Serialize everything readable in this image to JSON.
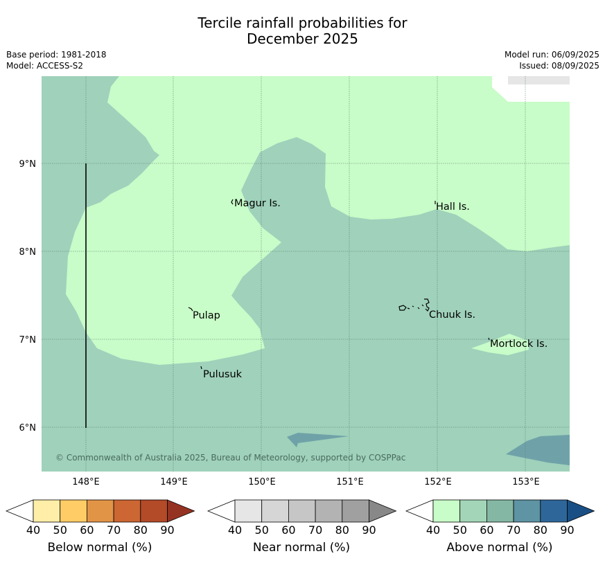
{
  "title_line1": "Tercile rainfall probabilities for",
  "title_line2": "December 2025",
  "meta": {
    "base_period": "Base period: 1981-2018",
    "model": "Model: ACCESS-S2",
    "model_run": "Model run: 06/09/2025",
    "issued": "Issued: 08/09/2025"
  },
  "map": {
    "lon_ticks": [
      "148°E",
      "149°E",
      "150°E",
      "151°E",
      "152°E",
      "153°E"
    ],
    "lat_ticks": [
      "9°N",
      "8°N",
      "7°N",
      "6°N"
    ],
    "places": {
      "magur": "Magur Is.",
      "hall": "Hall Is.",
      "pulap": "Pulap",
      "chuuk": "Chuuk Is.",
      "mortlock": "Mortlock Is.",
      "pulusuk": "Pulusuk"
    },
    "copyright": "© Commonwealth of Australia 2025, Bureau of Meteorology, supported by COSPPac",
    "colors": {
      "above_40_50": "#c8fcc8",
      "above_50_60": "#9fd1bb",
      "above_60_70": "#7fb0a2",
      "above_70_80": "#5f96a8",
      "above_80_90": "#2f679e"
    }
  },
  "legends": [
    {
      "title": "Below normal (%)",
      "ticks": [
        "40",
        "50",
        "60",
        "70",
        "80",
        "90"
      ],
      "colors": [
        "#ffffff",
        "#ffeea8",
        "#ffcc66",
        "#e29446",
        "#cc6633",
        "#b34a28",
        "#953322"
      ]
    },
    {
      "title": "Near normal (%)",
      "ticks": [
        "40",
        "50",
        "60",
        "70",
        "80",
        "90"
      ],
      "colors": [
        "#ffffff",
        "#e6e6e6",
        "#d6d6d6",
        "#c6c6c6",
        "#b3b3b3",
        "#a0a0a0",
        "#888888"
      ]
    },
    {
      "title": "Above normal (%)",
      "ticks": [
        "40",
        "50",
        "60",
        "70",
        "80",
        "90"
      ],
      "colors": [
        "#ffffff",
        "#c8fcc8",
        "#a3d6b8",
        "#85b8a4",
        "#5e94a4",
        "#2e6699",
        "#1a4f85"
      ]
    }
  ]
}
